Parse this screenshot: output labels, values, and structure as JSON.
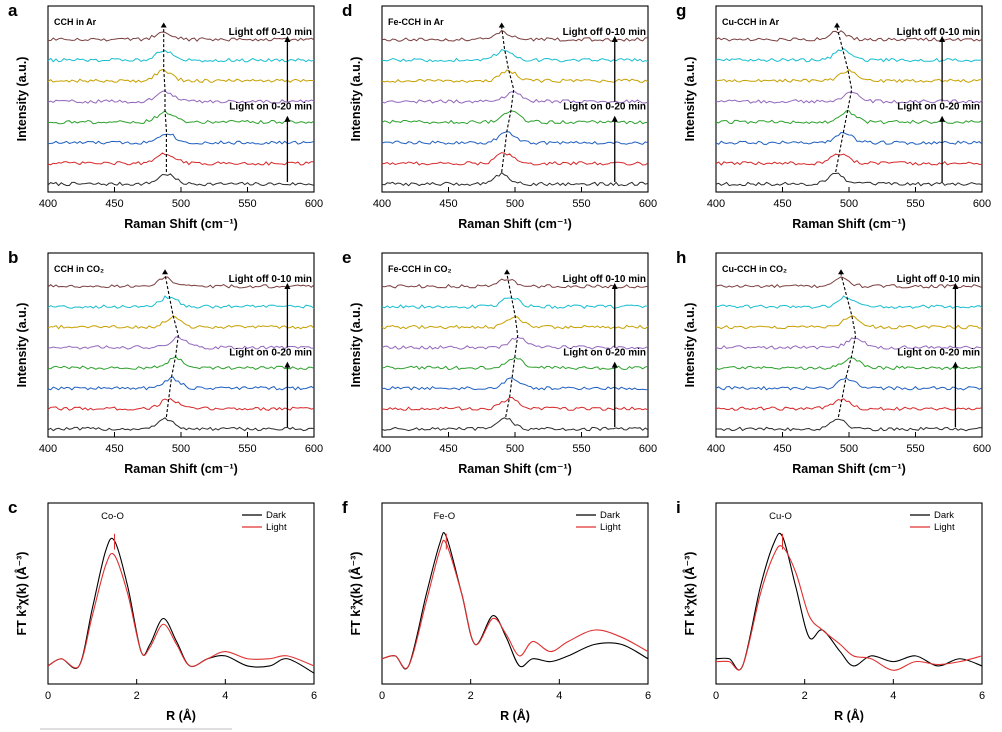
{
  "figure": {
    "colors": {
      "spectra": [
        "#2b2b2b",
        "#d62728",
        "#1f5fbf",
        "#2ca02c",
        "#9467bd",
        "#c8a000",
        "#17becf",
        "#7b3f3f"
      ],
      "dark": "#000000",
      "light": "#e03030"
    }
  },
  "chart_data": [
    {
      "panel": "a",
      "type": "line",
      "title": "CCH in Ar",
      "xlabel": "Raman Shift (cm⁻¹)",
      "ylabel": "Intensity (a.u.)",
      "xlim": [
        400,
        600
      ],
      "xticks": [
        400,
        450,
        500,
        550,
        600
      ],
      "n_spectra": 8,
      "peak_positions": [
        489,
        489,
        489,
        488,
        488,
        487,
        487,
        487
      ],
      "upper_label": "Light off 0-10 min",
      "lower_label": "Light on 0-20 min",
      "arrow_x": 580
    },
    {
      "panel": "b",
      "type": "line",
      "title": "CCH in CO₂",
      "xlabel": "Raman Shift (cm⁻¹)",
      "ylabel": "Intensity (a.u.)",
      "xlim": [
        400,
        600
      ],
      "xticks": [
        400,
        450,
        500,
        550,
        600
      ],
      "n_spectra": 8,
      "peak_positions": [
        489,
        491,
        493,
        496,
        498,
        494,
        491,
        488
      ],
      "upper_label": "Light off 0-10 min",
      "lower_label": "Light on 0-20 min",
      "arrow_x": 580
    },
    {
      "panel": "c",
      "type": "line",
      "title": "",
      "xlabel": "R (Å)",
      "ylabel": "FT k³χ(k) (Å⁻³)",
      "xlim": [
        0,
        6
      ],
      "xticks": [
        0,
        2,
        4,
        6
      ],
      "peak_label": "Co-O",
      "series": [
        {
          "name": "Dark",
          "x": [
            0,
            0.3,
            0.7,
            1.0,
            1.3,
            1.5,
            1.8,
            2.1,
            2.3,
            2.6,
            2.9,
            3.2,
            3.6,
            4.0,
            4.5,
            5.0,
            5.4,
            6.0
          ],
          "y": [
            0.05,
            0.1,
            0.05,
            0.45,
            0.85,
            0.92,
            0.6,
            0.15,
            0.2,
            0.38,
            0.22,
            0.05,
            0.1,
            0.12,
            0.05,
            0.05,
            0.1,
            0.0
          ]
        },
        {
          "name": "Light",
          "x": [
            0,
            0.3,
            0.7,
            1.0,
            1.3,
            1.5,
            1.8,
            2.1,
            2.3,
            2.6,
            2.9,
            3.2,
            3.6,
            4.0,
            4.5,
            5.0,
            5.4,
            6.0
          ],
          "y": [
            0.05,
            0.1,
            0.05,
            0.4,
            0.75,
            0.82,
            0.55,
            0.15,
            0.18,
            0.34,
            0.2,
            0.05,
            0.1,
            0.15,
            0.1,
            0.1,
            0.12,
            0.05
          ]
        }
      ]
    },
    {
      "panel": "d",
      "type": "line",
      "title": "Fe-CCH in Ar",
      "xlabel": "Raman Shift (cm⁻¹)",
      "ylabel": "Intensity (a.u.)",
      "xlim": [
        400,
        600
      ],
      "xticks": [
        400,
        450,
        500,
        550,
        600
      ],
      "n_spectra": 8,
      "peak_positions": [
        490,
        492,
        494,
        497,
        499,
        495,
        492,
        490
      ],
      "upper_label": "Light off 0-10 min",
      "lower_label": "Light on 0-20 min",
      "arrow_x": 575
    },
    {
      "panel": "e",
      "type": "line",
      "title": "Fe-CCH in CO₂",
      "xlabel": "Raman Shift (cm⁻¹)",
      "ylabel": "Intensity (a.u.)",
      "xlim": [
        400,
        600
      ],
      "xticks": [
        400,
        450,
        500,
        550,
        600
      ],
      "n_spectra": 8,
      "peak_positions": [
        493,
        496,
        498,
        500,
        502,
        500,
        497,
        494
      ],
      "upper_label": "Light off 0-10 min",
      "lower_label": "Light on 0-20 min",
      "arrow_x": 575
    },
    {
      "panel": "f",
      "type": "line",
      "title": "",
      "xlabel": "R (Å)",
      "ylabel": "FT k³χ(k) (Å⁻³)",
      "xlim": [
        0,
        6
      ],
      "xticks": [
        0,
        2,
        4,
        6
      ],
      "peak_label": "Fe-O",
      "series": [
        {
          "name": "Dark",
          "x": [
            0,
            0.3,
            0.6,
            1.0,
            1.3,
            1.45,
            1.8,
            2.1,
            2.5,
            2.8,
            3.1,
            3.4,
            3.8,
            4.2,
            4.8,
            5.4,
            6.0
          ],
          "y": [
            0.1,
            0.12,
            0.05,
            0.55,
            0.9,
            0.95,
            0.55,
            0.2,
            0.4,
            0.25,
            0.05,
            0.1,
            0.08,
            0.12,
            0.2,
            0.2,
            0.1
          ]
        },
        {
          "name": "Light",
          "x": [
            0,
            0.3,
            0.6,
            1.0,
            1.3,
            1.45,
            1.8,
            2.1,
            2.5,
            2.8,
            3.1,
            3.4,
            3.8,
            4.2,
            4.8,
            5.4,
            6.0
          ],
          "y": [
            0.1,
            0.12,
            0.05,
            0.5,
            0.85,
            0.9,
            0.55,
            0.2,
            0.38,
            0.27,
            0.12,
            0.22,
            0.15,
            0.22,
            0.3,
            0.25,
            0.15
          ]
        }
      ]
    },
    {
      "panel": "g",
      "type": "line",
      "title": "Cu-CCH in Ar",
      "xlabel": "Raman Shift (cm⁻¹)",
      "ylabel": "Intensity (a.u.)",
      "xlim": [
        400,
        600
      ],
      "xticks": [
        400,
        450,
        500,
        550,
        600
      ],
      "n_spectra": 8,
      "peak_positions": [
        490,
        493,
        496,
        499,
        502,
        499,
        495,
        491
      ],
      "upper_label": "Light off 0-10 min",
      "lower_label": "Light on 0-20 min",
      "arrow_x": 570
    },
    {
      "panel": "h",
      "type": "line",
      "title": "Cu-CCH in CO₂",
      "xlabel": "Raman Shift (cm⁻¹)",
      "ylabel": "Intensity (a.u.)",
      "xlim": [
        400,
        600
      ],
      "xticks": [
        400,
        450,
        500,
        550,
        600
      ],
      "n_spectra": 8,
      "peak_positions": [
        492,
        495,
        498,
        502,
        505,
        502,
        498,
        494
      ],
      "upper_label": "Light off 0-10 min",
      "lower_label": "Light on 0-20 min",
      "arrow_x": 580
    },
    {
      "panel": "i",
      "type": "line",
      "title": "",
      "xlabel": "R (Å)",
      "ylabel": "FT k³χ(k) (Å⁻³)",
      "xlim": [
        0,
        6
      ],
      "xticks": [
        0,
        2,
        4,
        6
      ],
      "peak_label": "Cu-O",
      "series": [
        {
          "name": "Dark",
          "x": [
            0,
            0.3,
            0.6,
            1.0,
            1.3,
            1.5,
            1.8,
            2.1,
            2.4,
            2.8,
            3.1,
            3.5,
            4.0,
            4.5,
            5.0,
            5.5,
            6.0
          ],
          "y": [
            0.1,
            0.1,
            0.05,
            0.6,
            0.9,
            0.95,
            0.6,
            0.25,
            0.3,
            0.15,
            0.05,
            0.12,
            0.08,
            0.12,
            0.05,
            0.1,
            0.05
          ]
        },
        {
          "name": "Light",
          "x": [
            0,
            0.3,
            0.6,
            1.0,
            1.3,
            1.5,
            1.8,
            2.1,
            2.4,
            2.8,
            3.1,
            3.5,
            4.0,
            4.5,
            5.0,
            5.5,
            6.0
          ],
          "y": [
            0.08,
            0.08,
            0.05,
            0.55,
            0.82,
            0.88,
            0.7,
            0.4,
            0.3,
            0.2,
            0.12,
            0.1,
            0.02,
            0.08,
            0.06,
            0.08,
            0.12
          ]
        }
      ]
    }
  ]
}
